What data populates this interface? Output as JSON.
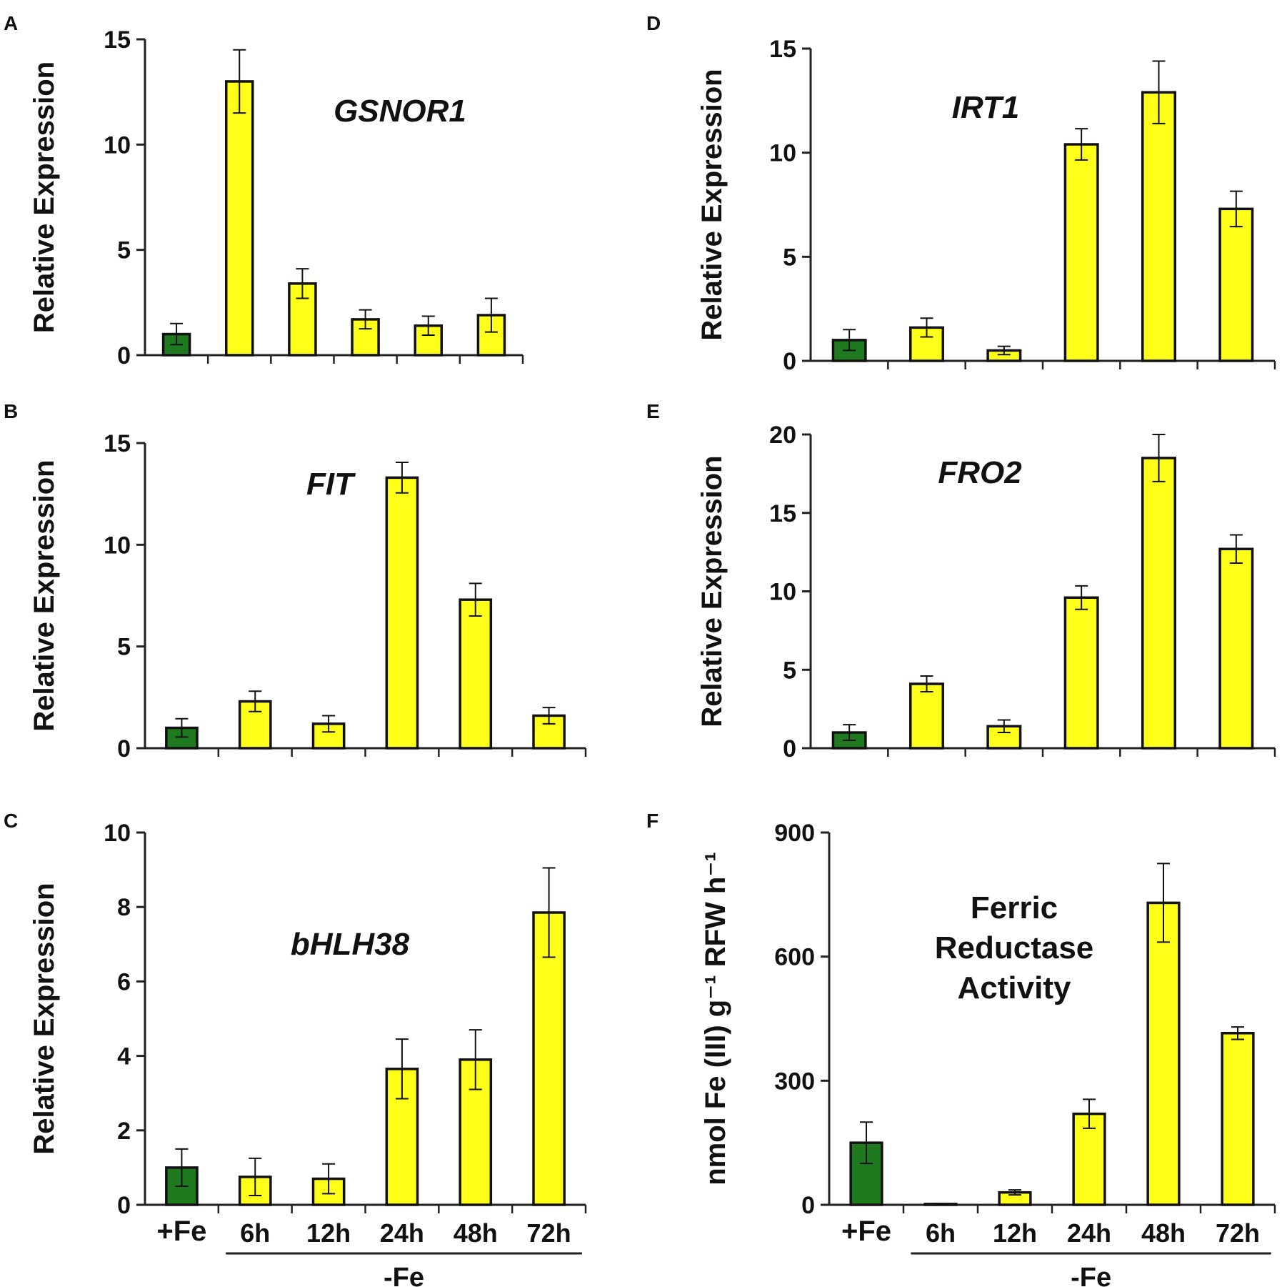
{
  "colors": {
    "control": "#1f7a1f",
    "treatment": "#ffff1a",
    "stroke": "#111111"
  },
  "x_categories": [
    "+Fe",
    "6h",
    "12h",
    "24h",
    "48h",
    "72h"
  ],
  "group_label": "-Fe",
  "chart_data": [
    {
      "id": "A",
      "type": "bar",
      "title": "GSNOR1",
      "ylabel": "Relative  Expression",
      "categories": [
        "+Fe",
        "6h",
        "12h",
        "24h",
        "48h",
        "72h"
      ],
      "values": [
        1.0,
        13.0,
        3.4,
        1.7,
        1.4,
        1.9
      ],
      "errors": [
        0.5,
        1.5,
        0.7,
        0.45,
        0.45,
        0.8
      ],
      "ylim": [
        0,
        15
      ],
      "yticks": [
        0,
        5,
        10,
        15
      ],
      "show_xlabels": false
    },
    {
      "id": "B",
      "type": "bar",
      "title": "FIT",
      "ylabel": "Relative  Expression",
      "categories": [
        "+Fe",
        "6h",
        "12h",
        "24h",
        "48h",
        "72h"
      ],
      "values": [
        1.0,
        2.3,
        1.2,
        13.3,
        7.3,
        1.6
      ],
      "errors": [
        0.45,
        0.5,
        0.4,
        0.75,
        0.8,
        0.4
      ],
      "ylim": [
        0,
        15
      ],
      "yticks": [
        0,
        5,
        10,
        15
      ],
      "show_xlabels": false
    },
    {
      "id": "C",
      "type": "bar",
      "title": "bHLH38",
      "ylabel": "Relative  Expression",
      "categories": [
        "+Fe",
        "6h",
        "12h",
        "24h",
        "48h",
        "72h"
      ],
      "values": [
        1.0,
        0.75,
        0.7,
        3.65,
        3.9,
        7.85
      ],
      "errors": [
        0.5,
        0.5,
        0.4,
        0.8,
        0.8,
        1.2
      ],
      "ylim": [
        0,
        10
      ],
      "yticks": [
        0,
        2,
        4,
        6,
        8,
        10
      ],
      "show_xlabels": true
    },
    {
      "id": "D",
      "type": "bar",
      "title": "IRT1",
      "ylabel": "Relative  Expression",
      "categories": [
        "+Fe",
        "6h",
        "12h",
        "24h",
        "48h",
        "72h"
      ],
      "values": [
        1.0,
        1.6,
        0.5,
        10.4,
        12.9,
        7.3
      ],
      "errors": [
        0.5,
        0.45,
        0.2,
        0.75,
        1.5,
        0.85
      ],
      "ylim": [
        0,
        15
      ],
      "yticks": [
        0,
        5,
        10,
        15
      ],
      "show_xlabels": false
    },
    {
      "id": "E",
      "type": "bar",
      "title": "FRO2",
      "ylabel": "Relative  Expression",
      "categories": [
        "+Fe",
        "6h",
        "12h",
        "24h",
        "48h",
        "72h"
      ],
      "values": [
        1.0,
        4.1,
        1.4,
        9.6,
        18.5,
        12.7
      ],
      "errors": [
        0.5,
        0.5,
        0.4,
        0.75,
        1.5,
        0.9
      ],
      "ylim": [
        0,
        20
      ],
      "yticks": [
        0,
        5,
        10,
        15,
        20
      ],
      "show_xlabels": false
    },
    {
      "id": "F",
      "type": "bar",
      "title": [
        "Ferric",
        "Reductase",
        "Activity"
      ],
      "title_italic": false,
      "ylabel": "nmol Fe (III) g⁻¹ RFW h⁻¹",
      "categories": [
        "+Fe",
        "6h",
        "12h",
        "24h",
        "48h",
        "72h"
      ],
      "values": [
        150,
        2,
        30,
        220,
        730,
        415
      ],
      "errors": [
        50,
        1,
        6,
        35,
        95,
        15
      ],
      "ylim": [
        0,
        900
      ],
      "yticks": [
        0,
        300,
        600,
        900
      ],
      "show_xlabels": true
    }
  ]
}
